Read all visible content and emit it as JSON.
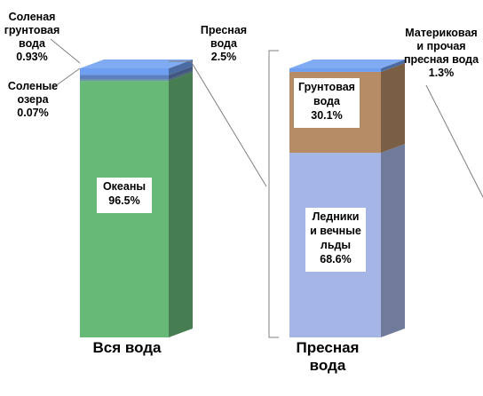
{
  "chart_data": [
    {
      "type": "bar",
      "stacked": true,
      "style": "3d",
      "category": "Вся вода",
      "segments": [
        {
          "label": "Океаны",
          "value": 96.5,
          "value_label": "96.5%",
          "color": "#67b978"
        },
        {
          "label": "Соленые озера",
          "value": 0.07,
          "value_label": "0.07%",
          "color": "#6a9a9e"
        },
        {
          "label": "Соленая грунтовая вода",
          "value": 0.93,
          "value_label": "0.93%",
          "color": "#5f80bf"
        },
        {
          "label": "Пресная вода",
          "value": 2.5,
          "value_label": "2.5%",
          "color": "#6f9ff0"
        }
      ]
    },
    {
      "type": "bar",
      "stacked": true,
      "style": "3d",
      "category": "Пресная вода",
      "segments": [
        {
          "label": "Ледники и вечные льды",
          "value": 68.6,
          "value_label": "68.6%",
          "color": "#a5b5e6"
        },
        {
          "label": "Грунтовая вода",
          "value": 30.1,
          "value_label": "30.1%",
          "color": "#b58c66"
        },
        {
          "label": "Материковая и прочая пресная вода",
          "value": 1.3,
          "value_label": "1.3%",
          "color": "#6f9ff0"
        }
      ]
    }
  ],
  "labels": {
    "oceans": [
      "Океаны",
      "96.5%"
    ],
    "saline_groundwater": [
      "Соленая",
      "грунтовая",
      "вода",
      "0.93%"
    ],
    "saline_lakes": [
      "Соленые",
      "озера",
      "0.07%"
    ],
    "fresh_water": [
      "Пресная",
      "вода",
      "2.5%"
    ],
    "glaciers": [
      "Ледники",
      "и вечные",
      "льды",
      "68.6%"
    ],
    "groundwater": [
      "Грунтовая",
      "вода",
      "30.1%"
    ],
    "surface_other": [
      "Материковая",
      "и прочая",
      "пресная вода",
      "1.3%"
    ],
    "cat1": [
      "Вся вода"
    ],
    "cat2": [
      "Пресная",
      "вода"
    ]
  }
}
